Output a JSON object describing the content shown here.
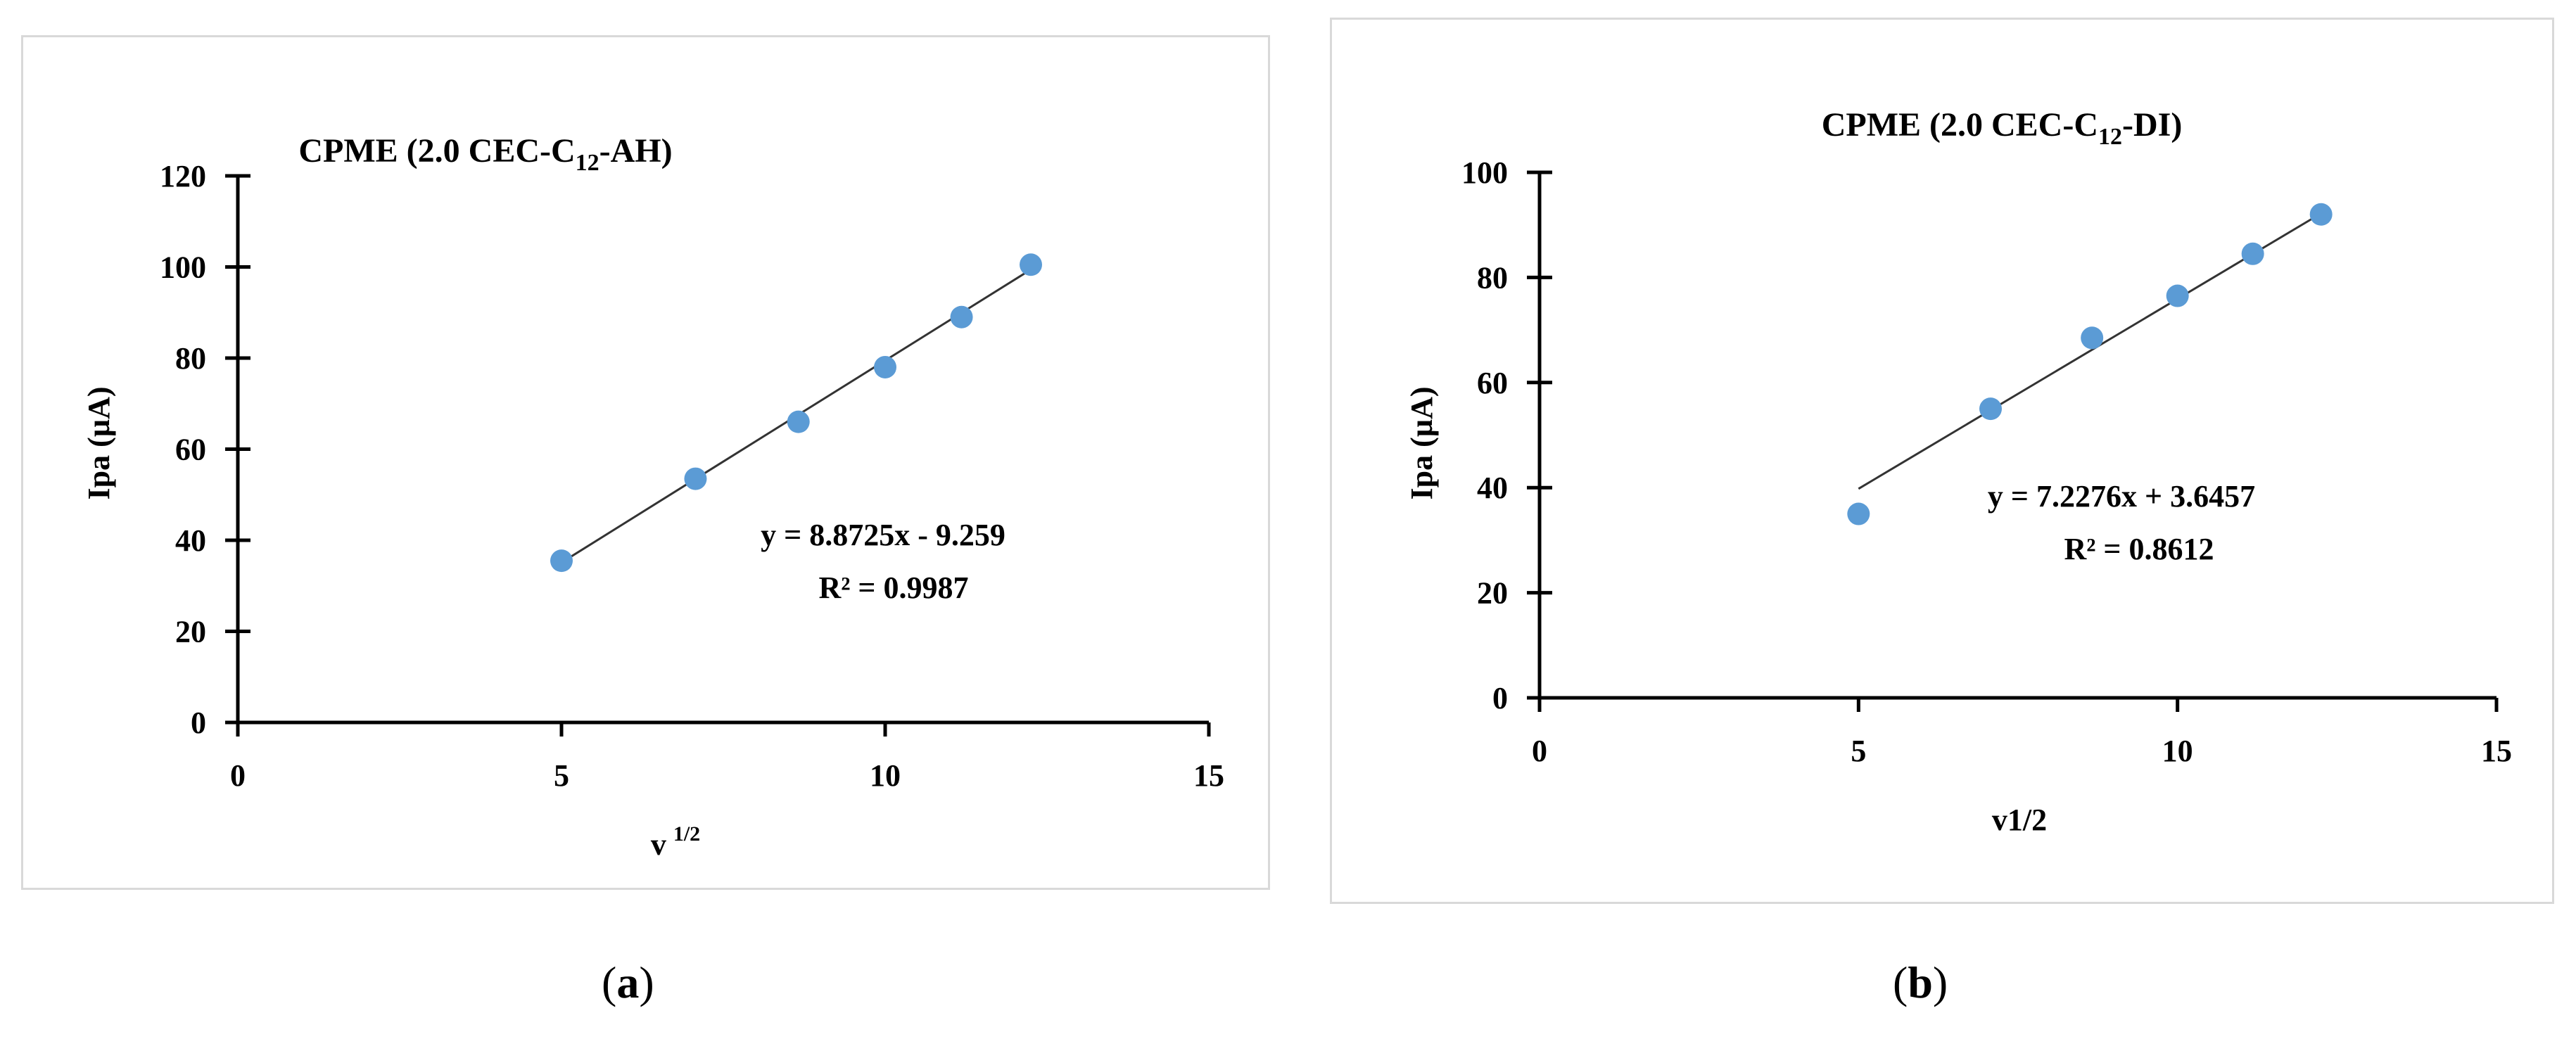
{
  "chart_data": [
    {
      "type": "scatter",
      "title_main": "CPME (2.0 CEC-C",
      "title_sub": "12",
      "title_end": "-AH)",
      "xlabel_main": "v",
      "xlabel_sup": "1/2",
      "ylabel": "Ipa (µA)",
      "xlim": [
        0,
        15
      ],
      "ylim": [
        0,
        120
      ],
      "xticks": [
        "0",
        "5",
        "10",
        "15"
      ],
      "yticks": [
        "0",
        "20",
        "40",
        "60",
        "80",
        "100",
        "120"
      ],
      "series": [
        {
          "x": [
            5.0,
            7.07,
            8.66,
            10.0,
            11.18,
            12.25
          ],
          "y": [
            35.5,
            53.5,
            66.0,
            78.0,
            89.0,
            100.5
          ]
        }
      ],
      "trendline": {
        "slope": 8.8725,
        "intercept": -9.259,
        "x_range": [
          5.0,
          12.25
        ]
      },
      "equation": "y = 8.8725x - 9.259",
      "r2": "R² = 0.9987",
      "grid": false,
      "point_color": "#5b9bd5",
      "line_color": "#333333"
    },
    {
      "type": "scatter",
      "title_main": "CPME (2.0 CEC-C",
      "title_sub": "12",
      "title_end": "-DI)",
      "xlabel_main": "v1/2",
      "xlabel_sup": "",
      "ylabel": "Ipa (µA)",
      "xlim": [
        0,
        15
      ],
      "ylim": [
        0,
        100
      ],
      "xticks": [
        "0",
        "5",
        "10",
        "15"
      ],
      "yticks": [
        "0",
        "20",
        "40",
        "60",
        "80",
        "100"
      ],
      "series": [
        {
          "x": [
            5.0,
            7.07,
            8.66,
            10.0,
            11.18,
            12.25
          ],
          "y": [
            35.0,
            55.0,
            68.5,
            76.5,
            84.5,
            92.0
          ]
        }
      ],
      "trendline": {
        "slope": 7.2276,
        "intercept": 3.6457,
        "x_range": [
          5.0,
          12.25
        ]
      },
      "equation": "y = 7.2276x + 3.6457",
      "r2": "R² = 0.8612",
      "grid": false,
      "point_color": "#5b9bd5",
      "line_color": "#333333"
    }
  ],
  "labels": {
    "a_open": "(",
    "a_letter": "a",
    "a_close": ")",
    "b_open": "(",
    "b_letter": "b",
    "b_close": ")"
  }
}
